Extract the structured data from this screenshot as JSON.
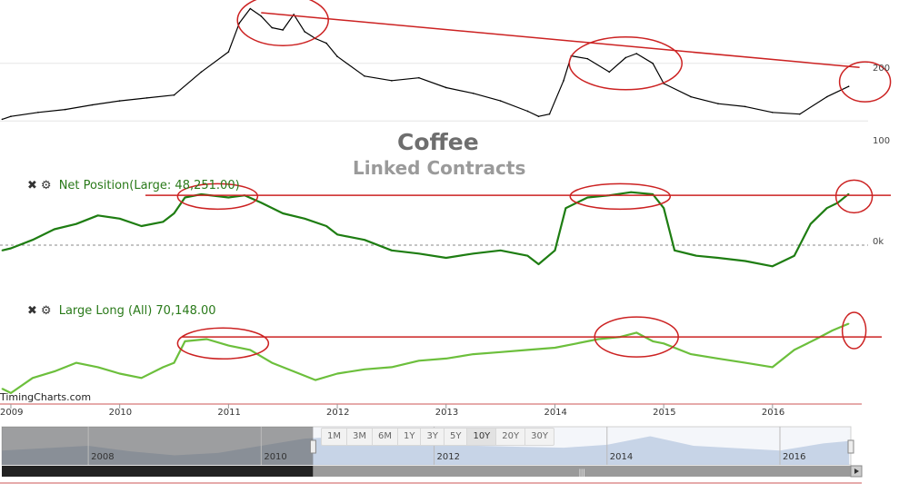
{
  "title": "Coffee",
  "subtitle": "Linked Contracts",
  "watermark": "TimingCharts.com",
  "controls": {
    "close_icon": "close-icon",
    "settings_icon": "gear-icon"
  },
  "range_buttons": [
    {
      "label": "1M",
      "active": false
    },
    {
      "label": "3M",
      "active": false
    },
    {
      "label": "6M",
      "active": false
    },
    {
      "label": "1Y",
      "active": false
    },
    {
      "label": "3Y",
      "active": false
    },
    {
      "label": "5Y",
      "active": false
    },
    {
      "label": "10Y",
      "active": true
    },
    {
      "label": "20Y",
      "active": false
    },
    {
      "label": "30Y",
      "active": false
    }
  ],
  "colors": {
    "price": "#000000",
    "net": "#1e7d12",
    "long": "#6cbf3c",
    "annotation": "#cc2222",
    "navigator": "#b8c8e0"
  },
  "chart_data": [
    {
      "type": "line",
      "name": "price",
      "y_tick_labels": [
        "200",
        "100"
      ],
      "y_ticks": [
        200,
        100
      ],
      "ylim": [
        50,
        310
      ],
      "x": [
        2008.92,
        2009.0,
        2009.25,
        2009.5,
        2009.75,
        2010.0,
        2010.25,
        2010.5,
        2010.75,
        2011.0,
        2011.1,
        2011.2,
        2011.3,
        2011.4,
        2011.5,
        2011.6,
        2011.7,
        2011.8,
        2011.9,
        2012.0,
        2012.25,
        2012.5,
        2012.75,
        2013.0,
        2013.25,
        2013.5,
        2013.75,
        2013.85,
        2013.95,
        2014.08,
        2014.15,
        2014.3,
        2014.5,
        2014.65,
        2014.75,
        2014.9,
        2015.0,
        2015.25,
        2015.5,
        2015.75,
        2016.0,
        2016.25,
        2016.5,
        2016.7
      ],
      "y": [
        103,
        108,
        115,
        120,
        128,
        135,
        140,
        145,
        185,
        220,
        270,
        295,
        282,
        262,
        258,
        285,
        255,
        243,
        235,
        212,
        178,
        170,
        175,
        158,
        148,
        135,
        117,
        108,
        112,
        170,
        213,
        208,
        185,
        210,
        217,
        200,
        165,
        142,
        130,
        125,
        115,
        112,
        142,
        160
      ],
      "trend_line": {
        "from": [
          2011.3,
          288
        ],
        "to": [
          2016.8,
          193
        ]
      },
      "annotations": [
        {
          "type": "ellipse",
          "x": 2011.5,
          "y": 275
        },
        {
          "type": "ellipse",
          "x": 2014.65,
          "y": 200
        },
        {
          "type": "ellipse",
          "x": 2016.85,
          "y": 168
        }
      ]
    },
    {
      "type": "line",
      "name": "Net Position",
      "label": "Net Position(Large: 48,251.00)",
      "y_tick_labels": [
        "0k"
      ],
      "ylim": [
        -30000,
        60000
      ],
      "x": [
        2008.92,
        2009.0,
        2009.2,
        2009.4,
        2009.6,
        2009.8,
        2010.0,
        2010.2,
        2010.4,
        2010.5,
        2010.6,
        2010.75,
        2011.0,
        2011.15,
        2011.3,
        2011.5,
        2011.7,
        2011.9,
        2012.0,
        2012.25,
        2012.5,
        2012.75,
        2013.0,
        2013.25,
        2013.5,
        2013.75,
        2013.85,
        2014.0,
        2014.1,
        2014.3,
        2014.5,
        2014.7,
        2014.9,
        2015.0,
        2015.1,
        2015.3,
        2015.5,
        2015.75,
        2016.0,
        2016.2,
        2016.35,
        2016.5,
        2016.6,
        2016.7
      ],
      "y": [
        -5000,
        -3000,
        5000,
        15000,
        20000,
        28000,
        25000,
        18000,
        22000,
        30000,
        45000,
        48000,
        45000,
        47000,
        40000,
        30000,
        25000,
        18000,
        10000,
        5000,
        -5000,
        -8000,
        -12000,
        -8000,
        -5000,
        -10000,
        -18000,
        -5000,
        35000,
        45000,
        47000,
        50000,
        48000,
        35000,
        -5000,
        -10000,
        -12000,
        -15000,
        -20000,
        -10000,
        20000,
        35000,
        40000,
        48251
      ],
      "reference_line": 47000,
      "annotations": [
        {
          "type": "ellipse",
          "x": 2010.9,
          "y": 46000
        },
        {
          "type": "ellipse",
          "x": 2014.6,
          "y": 46000
        },
        {
          "type": "ellipse",
          "x": 2016.75,
          "y": 46000
        }
      ]
    },
    {
      "type": "line",
      "name": "Large Long (All)",
      "label": "Large Long (All) 70,148.00",
      "ylim": [
        35000,
        75000
      ],
      "x": [
        2008.92,
        2009.0,
        2009.2,
        2009.4,
        2009.6,
        2009.8,
        2010.0,
        2010.2,
        2010.4,
        2010.5,
        2010.6,
        2010.8,
        2011.0,
        2011.2,
        2011.4,
        2011.6,
        2011.8,
        2012.0,
        2012.25,
        2012.5,
        2012.75,
        2013.0,
        2013.25,
        2013.5,
        2013.75,
        2014.0,
        2014.2,
        2014.4,
        2014.6,
        2014.75,
        2014.9,
        2015.0,
        2015.25,
        2015.5,
        2015.75,
        2016.0,
        2016.2,
        2016.4,
        2016.55,
        2016.7
      ],
      "y": [
        40000,
        38000,
        45000,
        48000,
        52000,
        50000,
        47000,
        45000,
        50000,
        52000,
        62000,
        63000,
        60000,
        58000,
        52000,
        48000,
        44000,
        47000,
        49000,
        50000,
        53000,
        54000,
        56000,
        57000,
        58000,
        59000,
        61000,
        63000,
        64000,
        66000,
        62000,
        61000,
        56000,
        54000,
        52000,
        50000,
        58000,
        63000,
        67000,
        70148
      ],
      "reference_line": 64000,
      "annotations": [
        {
          "type": "ellipse",
          "x": 2010.95,
          "y": 61000
        },
        {
          "type": "ellipse",
          "x": 2014.75,
          "y": 64000
        },
        {
          "type": "ellipse",
          "x": 2016.75,
          "y": 67000
        }
      ]
    }
  ],
  "x_axis": {
    "labels": [
      "2009",
      "2010",
      "2011",
      "2012",
      "2013",
      "2014",
      "2015",
      "2016"
    ],
    "values": [
      2009,
      2010,
      2011,
      2012,
      2013,
      2014,
      2015,
      2016
    ],
    "xlim": [
      2008.9,
      2016.82
    ]
  },
  "navigator": {
    "labels": [
      "2008",
      "2010",
      "2012",
      "2014",
      "2016"
    ],
    "values": [
      2008,
      2010,
      2012,
      2014,
      2016
    ],
    "xlim": [
      2007.0,
      2016.82
    ],
    "selected_range": [
      2010.6,
      2016.82
    ],
    "series_x": [
      2007.0,
      2007.5,
      2008.0,
      2008.5,
      2009.0,
      2009.5,
      2010.0,
      2010.5,
      2011.0,
      2011.5,
      2012.0,
      2012.5,
      2013.0,
      2013.5,
      2014.0,
      2014.5,
      2015.0,
      2015.5,
      2016.0,
      2016.5,
      2016.8
    ],
    "series_y": [
      30,
      35,
      40,
      28,
      20,
      25,
      40,
      55,
      60,
      58,
      45,
      40,
      38,
      36,
      42,
      60,
      40,
      35,
      30,
      45,
      50
    ]
  }
}
